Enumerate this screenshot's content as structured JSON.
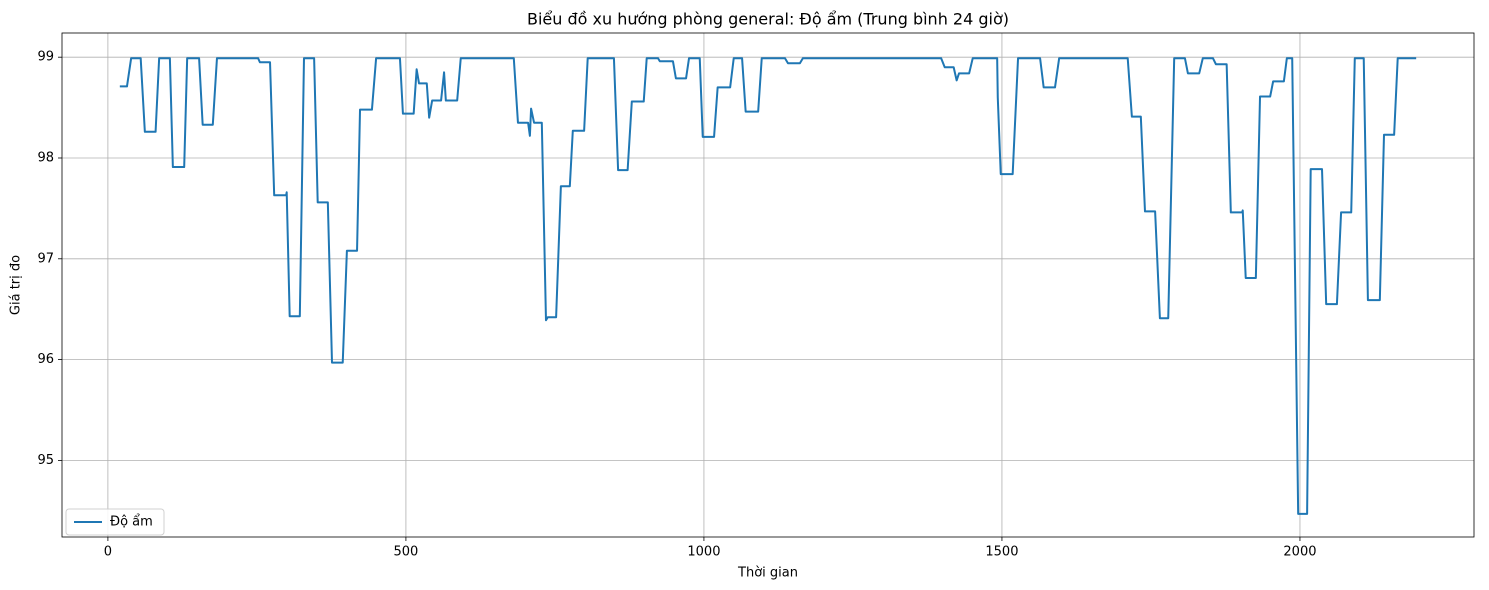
{
  "chart_data": {
    "type": "line",
    "title": "Biểu đồ xu hướng phòng general: Độ ẩm (Trung bình 24 giờ)",
    "x_label": "Thời gian",
    "y_label": "Giá trị đo",
    "x": [
      20,
      32,
      39,
      55,
      62,
      80,
      86,
      104,
      109,
      128,
      133,
      153,
      159,
      176,
      183,
      252,
      255,
      272,
      279,
      299,
      300,
      305,
      322,
      329,
      346,
      352,
      369,
      376,
      394,
      401,
      418,
      423,
      443,
      450,
      490,
      495,
      513,
      518,
      522,
      535,
      539,
      544,
      559,
      564,
      567,
      586,
      592,
      681,
      688,
      705,
      708,
      710,
      715,
      728,
      735,
      738,
      752,
      760,
      775,
      780,
      799,
      805,
      849,
      856,
      872,
      879,
      899,
      904,
      923,
      926,
      948,
      953,
      970,
      975,
      993,
      998,
      1017,
      1023,
      1044,
      1050,
      1064,
      1070,
      1091,
      1097,
      1136,
      1141,
      1161,
      1166,
      1398,
      1404,
      1419,
      1424,
      1428,
      1445,
      1451,
      1492,
      1493,
      1498,
      1518,
      1527,
      1564,
      1570,
      1589,
      1596,
      1711,
      1718,
      1733,
      1740,
      1757,
      1765,
      1779,
      1789,
      1807,
      1812,
      1831,
      1837,
      1854,
      1859,
      1877,
      1884,
      1903,
      1904,
      1909,
      1926,
      1933,
      1950,
      1955,
      1973,
      1978,
      1987,
      1997,
      2012,
      2018,
      2037,
      2044,
      2062,
      2069,
      2086,
      2092,
      2107,
      2114,
      2134,
      2141,
      2158,
      2164,
      2195
    ],
    "series": [
      {
        "name": "Độ ẩm",
        "color": "#1f77b4",
        "values": [
          98.71,
          98.71,
          98.99,
          98.99,
          98.26,
          98.26,
          98.99,
          98.99,
          97.91,
          97.91,
          98.99,
          98.99,
          98.33,
          98.33,
          98.99,
          98.99,
          98.95,
          98.95,
          97.63,
          97.63,
          97.66,
          96.43,
          96.43,
          98.99,
          98.99,
          97.56,
          97.56,
          95.97,
          95.97,
          97.08,
          97.08,
          98.48,
          98.48,
          98.99,
          98.99,
          98.44,
          98.44,
          98.88,
          98.74,
          98.74,
          98.4,
          98.57,
          98.57,
          98.85,
          98.57,
          98.57,
          98.99,
          98.99,
          98.35,
          98.35,
          98.22,
          98.49,
          98.35,
          98.35,
          96.39,
          96.42,
          96.42,
          97.72,
          97.72,
          98.27,
          98.27,
          98.99,
          98.99,
          97.88,
          97.88,
          98.56,
          98.56,
          98.99,
          98.99,
          98.96,
          98.96,
          98.79,
          98.79,
          98.99,
          98.99,
          98.21,
          98.21,
          98.7,
          98.7,
          98.99,
          98.99,
          98.46,
          98.46,
          98.99,
          98.99,
          98.94,
          98.94,
          98.99,
          98.99,
          98.9,
          98.9,
          98.77,
          98.84,
          98.84,
          98.99,
          98.99,
          98.6,
          97.84,
          97.84,
          98.99,
          98.99,
          98.7,
          98.7,
          98.99,
          98.99,
          98.41,
          98.41,
          97.47,
          97.47,
          96.41,
          96.41,
          98.99,
          98.99,
          98.84,
          98.84,
          98.99,
          98.99,
          98.93,
          98.93,
          97.46,
          97.46,
          97.48,
          96.81,
          96.81,
          98.61,
          98.61,
          98.76,
          98.76,
          98.99,
          98.99,
          94.47,
          94.47,
          97.89,
          97.89,
          96.55,
          96.55,
          97.46,
          97.46,
          98.99,
          98.99,
          96.59,
          96.59,
          98.23,
          98.23,
          98.99,
          98.99
        ]
      }
    ],
    "xlim": [
      -77,
      2292
    ],
    "ylim": [
      94.24,
      99.24
    ],
    "xticks": [
      0,
      500,
      1000,
      1500,
      2000
    ],
    "yticks": [
      95,
      96,
      97,
      98,
      99
    ],
    "grid": true,
    "legend": "lower left"
  }
}
